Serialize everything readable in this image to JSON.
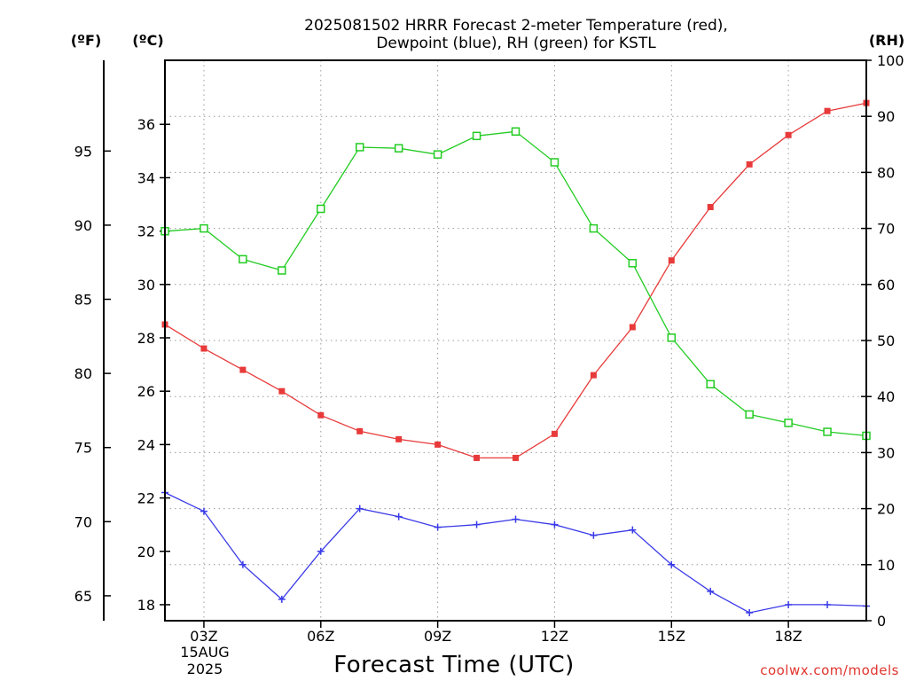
{
  "chart_data": {
    "type": "line",
    "title": "2025081502 HRRR Forecast 2-meter Temperature (red),",
    "subtitle": "Dewpoint (blue), RH (green) for KSTL",
    "xlabel": "Forecast Time (UTC)",
    "ylabel_left_f": "(ºF)",
    "ylabel_left_c": "(ºC)",
    "ylabel_right": "(RH)",
    "credit": "coolwx.com/models",
    "x_tick_labels": [
      "03Z",
      "06Z",
      "09Z",
      "12Z",
      "15Z",
      "18Z"
    ],
    "x_tick_hours": [
      3,
      6,
      9,
      12,
      15,
      18
    ],
    "date_label": [
      "15AUG",
      "2025"
    ],
    "xlim": [
      2,
      20
    ],
    "ylim_c": [
      17.4,
      38.4
    ],
    "ylim_rh": [
      0,
      100
    ],
    "f_ticks": [
      65,
      70,
      75,
      80,
      85,
      90,
      95
    ],
    "c_ticks": [
      18,
      20,
      22,
      24,
      26,
      28,
      30,
      32,
      34,
      36
    ],
    "rh_ticks": [
      0,
      10,
      20,
      30,
      40,
      50,
      60,
      70,
      80,
      90,
      100
    ],
    "x": [
      2,
      3,
      4,
      5,
      6,
      7,
      8,
      9,
      10,
      11,
      12,
      13,
      14,
      15,
      16,
      17,
      18,
      19,
      20
    ],
    "series": [
      {
        "name": "Temperature",
        "axis": "c",
        "color": "#e83a3a",
        "marker": "filled-square",
        "values": [
          28.5,
          27.6,
          26.8,
          26.0,
          25.1,
          24.5,
          24.2,
          24.0,
          23.5,
          23.5,
          24.4,
          26.6,
          28.4,
          30.9,
          32.9,
          34.5,
          35.6,
          36.5,
          36.8
        ]
      },
      {
        "name": "Dewpoint",
        "axis": "c",
        "color": "#3a3ae8",
        "marker": "plus",
        "values": [
          22.2,
          21.5,
          19.5,
          18.2,
          20.0,
          21.6,
          21.3,
          20.9,
          21.0,
          21.2,
          21.0,
          20.6,
          20.8,
          19.5,
          18.5,
          17.7,
          18.0,
          18.0,
          17.95
        ]
      },
      {
        "name": "RH",
        "axis": "rh",
        "color": "#22cc22",
        "marker": "open-square",
        "values": [
          69.5,
          70.0,
          64.5,
          62.5,
          73.5,
          84.5,
          84.3,
          83.2,
          86.5,
          87.3,
          81.8,
          70.0,
          63.8,
          50.5,
          42.2,
          36.8,
          35.3,
          33.7,
          33.0
        ]
      }
    ],
    "grid": true
  }
}
